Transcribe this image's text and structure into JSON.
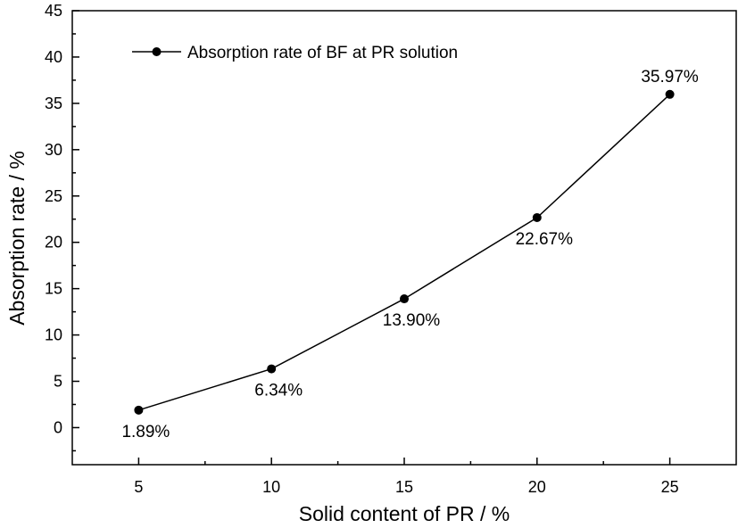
{
  "chart_data": {
    "type": "line",
    "title": "",
    "xlabel": "Solid content of PR / %",
    "ylabel": "Absorption rate / %",
    "x": [
      5,
      10,
      15,
      20,
      25
    ],
    "series": [
      {
        "name": "Absorption rate of BF at PR solution",
        "values": [
          1.89,
          6.34,
          13.9,
          22.67,
          35.97
        ],
        "labels": [
          "1.89%",
          "6.34%",
          "13.90%",
          "22.67%",
          "35.97%"
        ],
        "label_position": [
          "below",
          "below",
          "below",
          "below",
          "above"
        ]
      }
    ],
    "xlim": [
      2.5,
      27.5
    ],
    "ylim": [
      -4,
      45
    ],
    "xticks": [
      5,
      10,
      15,
      20,
      25
    ],
    "yticks": [
      0,
      5,
      10,
      15,
      20,
      25,
      30,
      35,
      40,
      45
    ],
    "grid": false,
    "legend": "top-left",
    "color": "#000000"
  }
}
